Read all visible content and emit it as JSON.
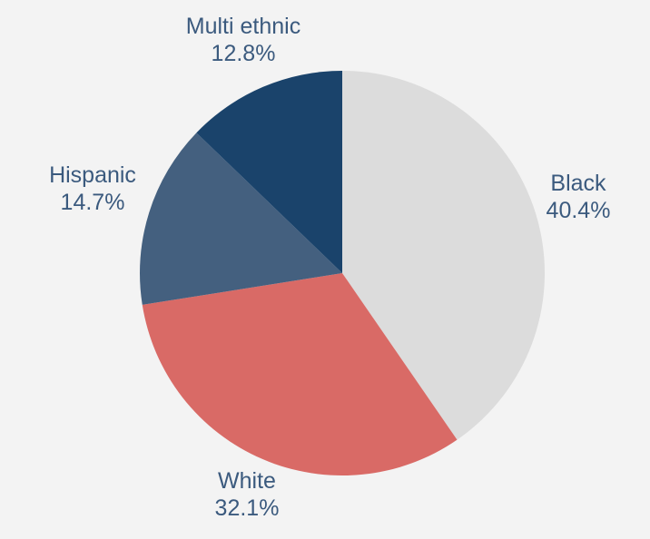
{
  "chart_data": {
    "type": "pie",
    "title": "",
    "slices": [
      {
        "label": "Black",
        "value": 40.4,
        "value_text": "40.4%",
        "color": "#dcdcdc"
      },
      {
        "label": "White",
        "value": 32.1,
        "value_text": "32.1%",
        "color": "#d96a66"
      },
      {
        "label": "Hispanic",
        "value": 14.7,
        "value_text": "14.7%",
        "color": "#44607f"
      },
      {
        "label": "Multi ethnic",
        "value": 12.8,
        "value_text": "12.8%",
        "color": "#1a436b"
      }
    ],
    "start_angle": "12 o'clock",
    "direction": "clockwise",
    "label_color": "#3b5a7e",
    "background": "#f3f3f3"
  }
}
